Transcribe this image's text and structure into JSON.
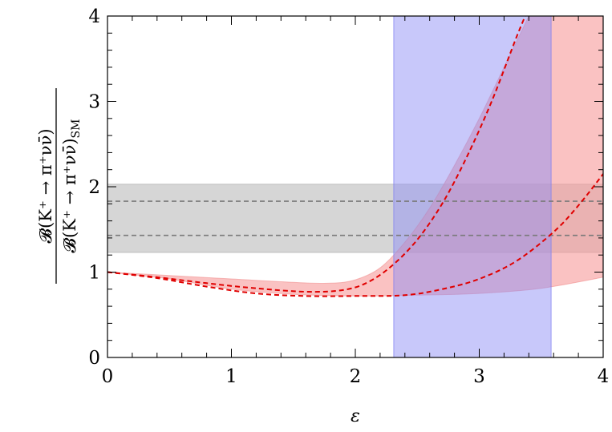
{
  "chart_data": {
    "type": "line",
    "xlabel": "ε",
    "ylabel_numerator": "𝓑(K⁺ → π⁺νν̄)",
    "ylabel_denominator": "𝓑(K⁺ → π⁺νν̄)",
    "ylabel_denominator_subscript": "SM",
    "xlim": [
      0,
      4
    ],
    "ylim": [
      0,
      4
    ],
    "x_ticks": [
      0,
      1,
      2,
      3,
      4
    ],
    "y_ticks": [
      0,
      1,
      2,
      3,
      4
    ],
    "x_tick_labels": [
      "0",
      "1",
      "2",
      "3",
      "4"
    ],
    "y_tick_labels": [
      "0",
      "1",
      "2",
      "3",
      "4"
    ],
    "grid": false,
    "colors": {
      "gray_band": "#bdbdbd",
      "gray_dash": "#7a7a7a",
      "blue_band": "#8c8cf5",
      "red_band": "#f79a9a",
      "red_dash": "#e00000"
    },
    "horizontal_band": {
      "y_min": 1.23,
      "y_max": 2.03
    },
    "horizontal_dashed_lines": [
      1.83,
      1.43
    ],
    "vertical_band_blue": {
      "x_min": 2.31,
      "x_max": 3.58
    },
    "red_band_upper": {
      "x": [
        0,
        0.5,
        1.0,
        1.5,
        1.8,
        2.0,
        2.2,
        2.4,
        2.6,
        2.8,
        3.0,
        3.2,
        3.4,
        3.5
      ],
      "y": [
        1.0,
        0.96,
        0.92,
        0.88,
        0.87,
        0.91,
        1.05,
        1.35,
        1.75,
        2.25,
        2.8,
        3.4,
        4.0,
        4.3
      ]
    },
    "red_band_lower": {
      "x": [
        0,
        0.5,
        1.0,
        1.5,
        2.0,
        2.5,
        3.0,
        3.5,
        4.0
      ],
      "y": [
        1.0,
        0.92,
        0.8,
        0.74,
        0.72,
        0.73,
        0.75,
        0.81,
        0.94
      ]
    },
    "series": [
      {
        "x": [
          0,
          0.4,
          0.8,
          1.2,
          1.6,
          1.9,
          2.1,
          2.3,
          2.5,
          2.7,
          2.9,
          3.1,
          3.3,
          3.4
        ],
        "y": [
          1.0,
          0.94,
          0.87,
          0.81,
          0.77,
          0.79,
          0.88,
          1.08,
          1.38,
          1.8,
          2.35,
          3.0,
          3.75,
          4.1
        ]
      },
      {
        "x": [
          0,
          0.4,
          0.8,
          1.2,
          1.6,
          2.0,
          2.4,
          2.7,
          3.0,
          3.3,
          3.6,
          3.8,
          4.0
        ],
        "y": [
          1.0,
          0.93,
          0.83,
          0.75,
          0.72,
          0.72,
          0.73,
          0.8,
          0.92,
          1.13,
          1.47,
          1.78,
          2.15
        ]
      }
    ]
  }
}
